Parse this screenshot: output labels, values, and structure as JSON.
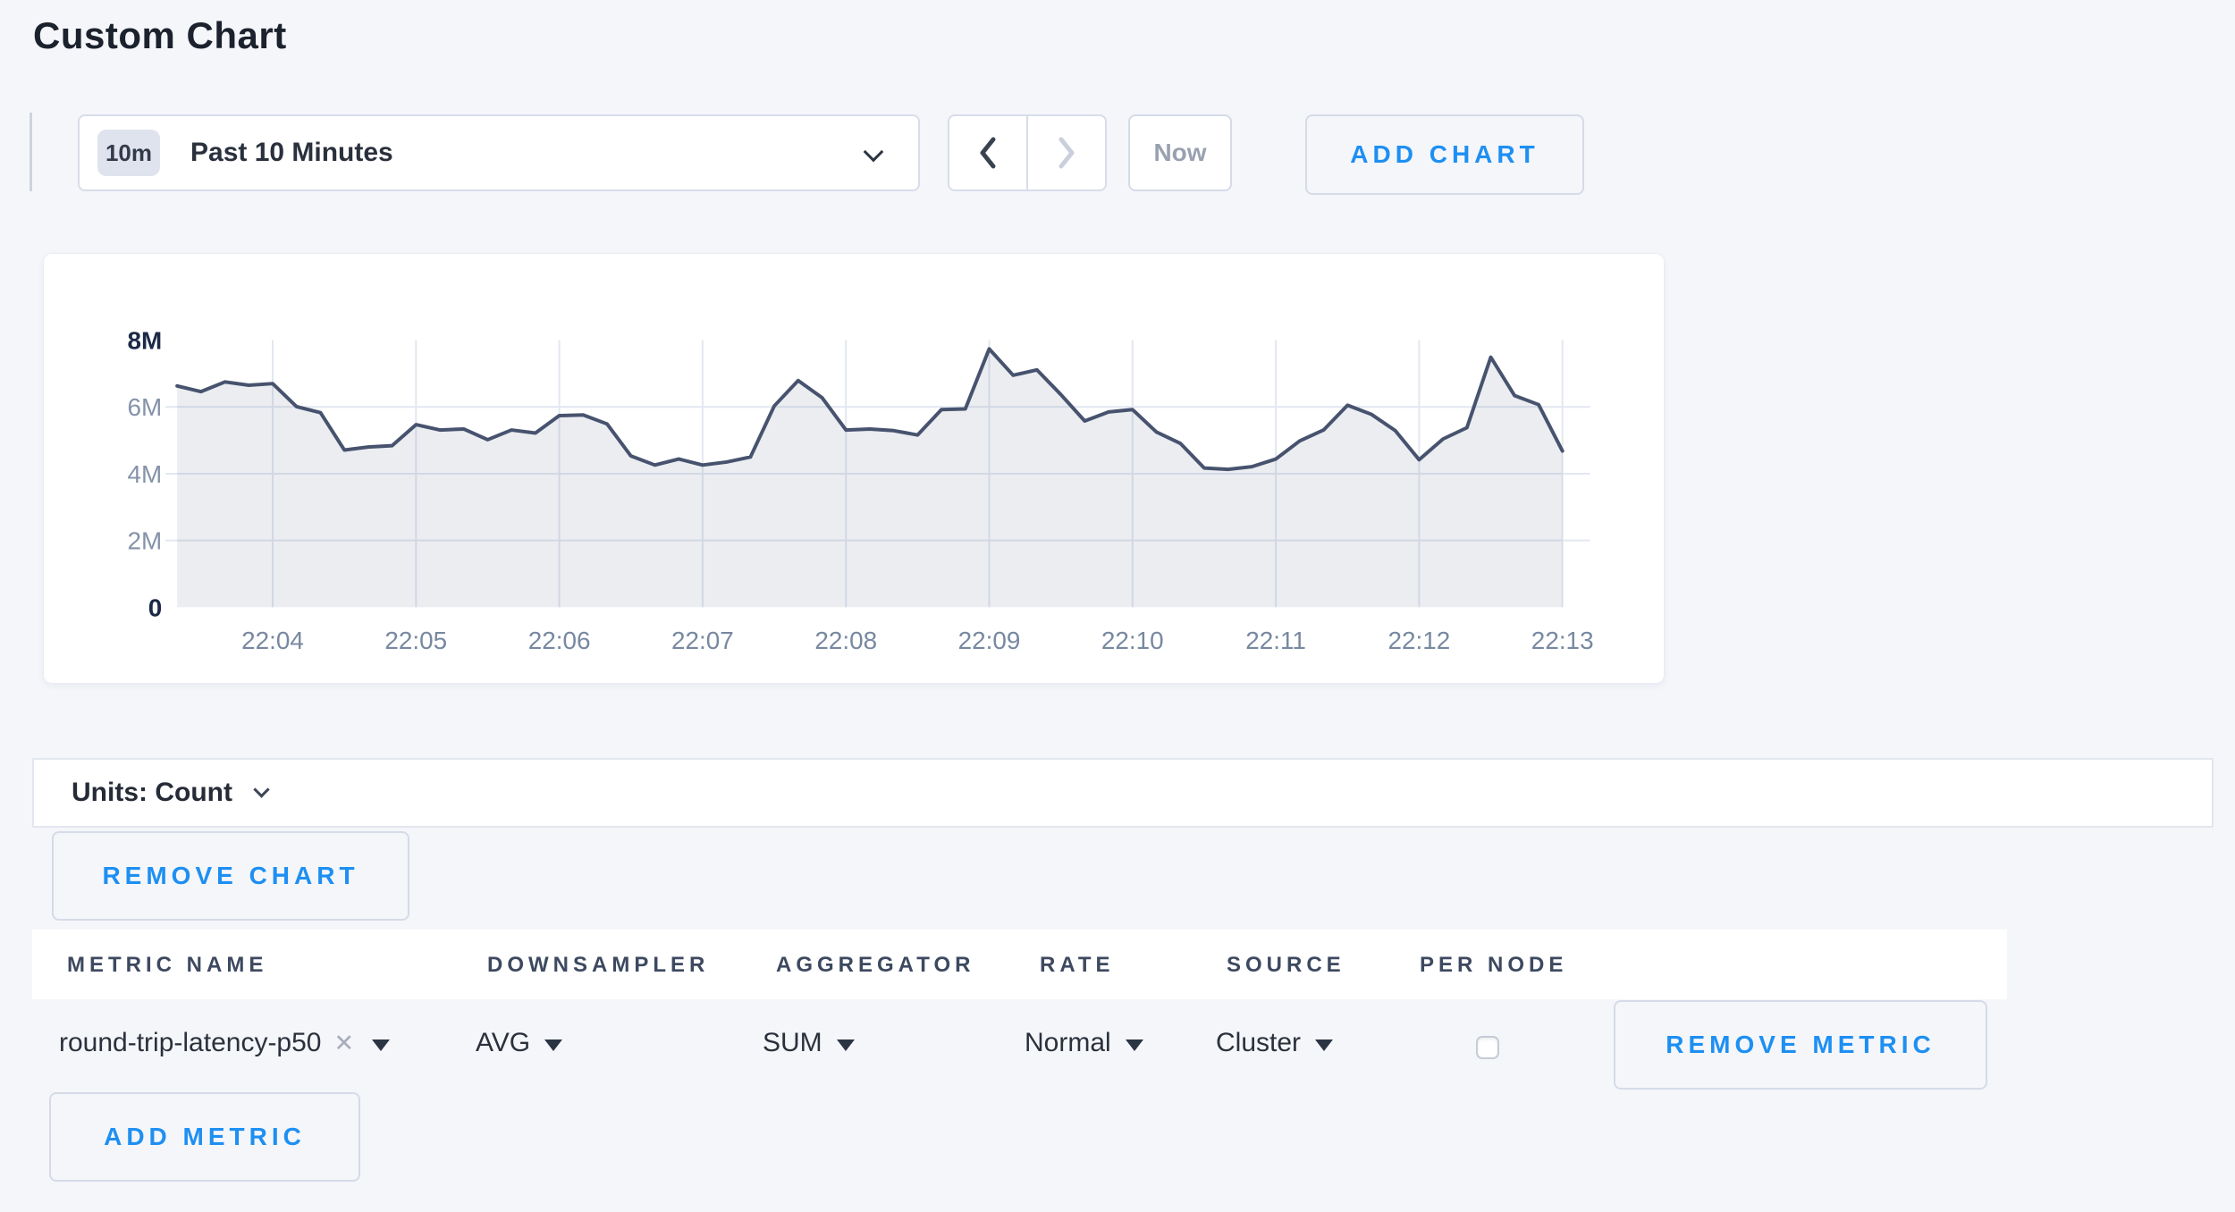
{
  "page": {
    "title": "Custom Chart"
  },
  "toolbar": {
    "time_window_badge": "10m",
    "time_window_label": "Past 10 Minutes",
    "prev_arrow": "chevron-left",
    "next_arrow": "chevron-right",
    "now_label": "Now",
    "add_chart_label": "ADD CHART"
  },
  "chart_data": {
    "type": "area",
    "title": "",
    "xlabel": "",
    "ylabel": "",
    "unit": "count",
    "ylim": [
      0,
      8000000
    ],
    "grid": true,
    "legend": false,
    "x_start": "22:03:20",
    "x_step_seconds": 10,
    "x_tick_labels": [
      "22:04",
      "22:05",
      "22:06",
      "22:07",
      "22:08",
      "22:09",
      "22:10",
      "22:11",
      "22:12",
      "22:13"
    ],
    "x_tick_sample_indices": [
      4,
      10,
      16,
      22,
      28,
      34,
      40,
      46,
      52,
      58
    ],
    "y_ticks": [
      {
        "label": "8M",
        "value_millions": 8,
        "emphasis": true
      },
      {
        "label": "6M",
        "value_millions": 6,
        "emphasis": false
      },
      {
        "label": "4M",
        "value_millions": 4,
        "emphasis": false
      },
      {
        "label": "2M",
        "value_millions": 2,
        "emphasis": false
      },
      {
        "label": "0",
        "value_millions": 0,
        "emphasis": true
      }
    ],
    "series": [
      {
        "name": "round-trip-latency-p50",
        "values_millions": [
          6.63,
          6.46,
          6.75,
          6.65,
          6.7,
          6.01,
          5.83,
          4.71,
          4.8,
          4.84,
          5.47,
          5.31,
          5.34,
          5.02,
          5.31,
          5.22,
          5.74,
          5.76,
          5.49,
          4.53,
          4.26,
          4.44,
          4.26,
          4.35,
          4.5,
          6.03,
          6.79,
          6.28,
          5.31,
          5.34,
          5.29,
          5.16,
          5.92,
          5.94,
          7.74,
          6.95,
          7.11,
          6.37,
          5.58,
          5.85,
          5.92,
          5.25,
          4.91,
          4.17,
          4.13,
          4.21,
          4.44,
          4.98,
          5.31,
          6.05,
          5.78,
          5.29,
          4.42,
          5.04,
          5.38,
          7.49,
          6.34,
          6.07,
          4.68
        ]
      }
    ]
  },
  "units_bar": {
    "label": "Units: Count"
  },
  "chart_actions": {
    "remove_chart_label": "REMOVE CHART"
  },
  "metrics_table": {
    "headers": [
      "METRIC NAME",
      "DOWNSAMPLER",
      "AGGREGATOR",
      "RATE",
      "SOURCE",
      "PER NODE"
    ],
    "row": {
      "metric_name": "round-trip-latency-p50",
      "clear_icon": "✕",
      "downsampler": "AVG",
      "aggregator": "SUM",
      "rate": "Normal",
      "source": "Cluster",
      "per_node_checked": false,
      "remove_label": "REMOVE METRIC"
    },
    "add_metric_label": "ADD METRIC"
  },
  "colors": {
    "accent_blue": "#1e8ff2",
    "line": "#47536e",
    "area_fill": "rgba(99,116,145,0.13)",
    "gridline": "#e2e7f0",
    "axis_label_dark": "#1c2a47",
    "axis_label_light": "#8592a9",
    "x_label": "#7788a0",
    "page_bg": "#f4f6fa"
  }
}
